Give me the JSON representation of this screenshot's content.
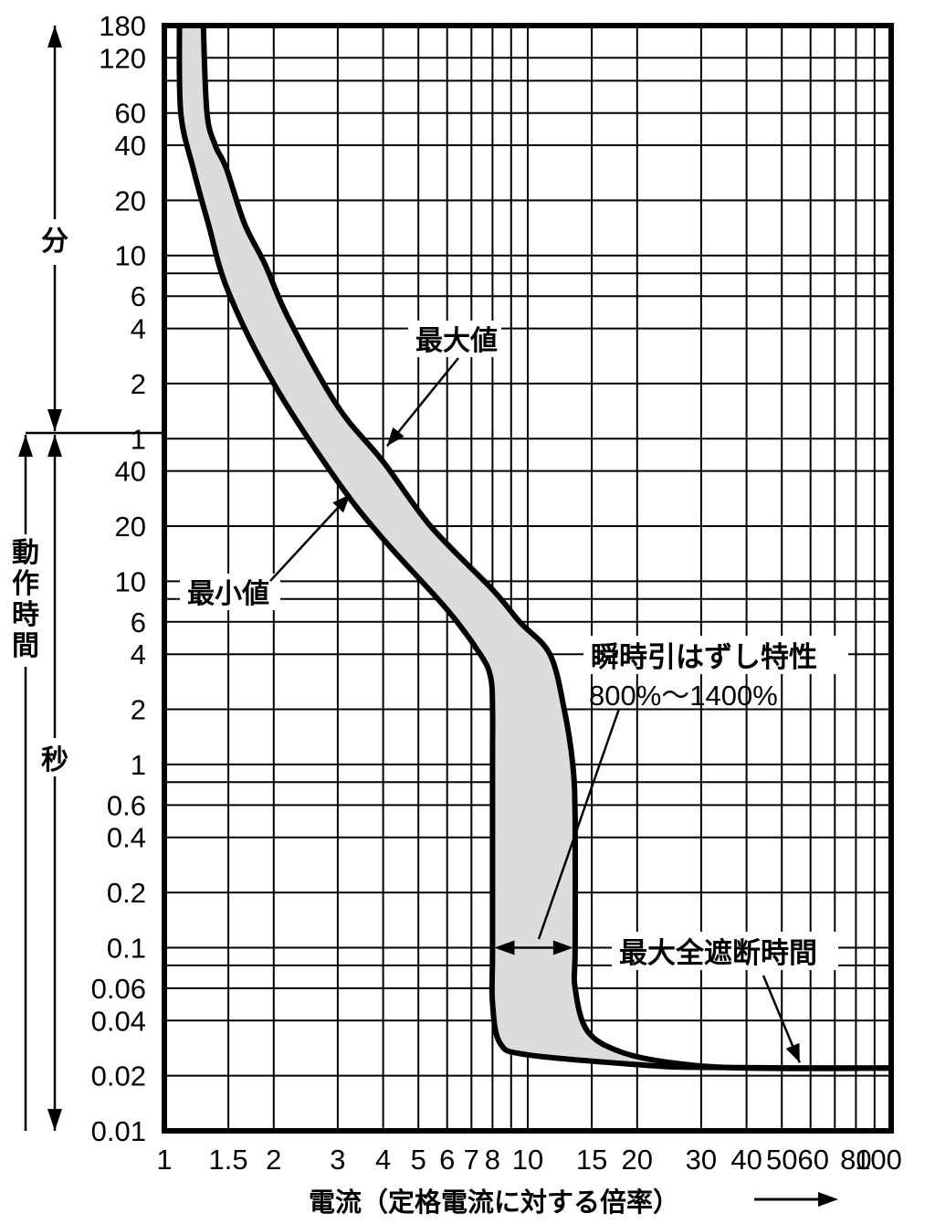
{
  "chart_data": {
    "type": "area",
    "title": "",
    "xlabel": "電流（定格電流に対する倍率）",
    "x_axis": {
      "scale": "log",
      "range": [
        1,
        100
      ],
      "tick_labels": [
        "1",
        "1.5",
        "2",
        "3",
        "4",
        "5",
        "6",
        "7",
        "8",
        "10",
        "15",
        "20",
        "30",
        "40",
        "50",
        "60",
        "80",
        "100"
      ]
    },
    "y_axis": {
      "scale": "log",
      "range_seconds": [
        0.01,
        10800
      ],
      "units": [
        "分",
        "秒"
      ],
      "label": "動作時間",
      "minute_tick_labels": [
        "180",
        "120",
        "60",
        "40",
        "20",
        "10",
        "6",
        "4",
        "2",
        "1"
      ],
      "second_tick_labels": [
        "40",
        "20",
        "10",
        "6",
        "4",
        "2",
        "1",
        "0.6",
        "0.4",
        "0.2",
        "0.1",
        "0.06",
        "0.04",
        "0.02",
        "0.01"
      ]
    },
    "grid": true,
    "series": [
      {
        "name": "最大値",
        "points": [
          [
            1.28,
            10800
          ],
          [
            1.31,
            3600
          ],
          [
            1.38,
            2400
          ],
          [
            1.48,
            1800
          ],
          [
            1.66,
            900
          ],
          [
            1.89,
            540
          ],
          [
            2.2,
            270
          ],
          [
            3.0,
            90
          ],
          [
            4.0,
            45
          ],
          [
            5.4,
            20
          ],
          [
            8.0,
            9
          ],
          [
            9.5,
            6
          ],
          [
            11.5,
            4
          ],
          [
            12.6,
            2
          ],
          [
            13.3,
            1
          ],
          [
            13.5,
            0.5
          ],
          [
            13.5,
            0.1
          ],
          [
            13.5,
            0.06
          ],
          [
            14.6,
            0.035
          ],
          [
            18,
            0.027
          ],
          [
            25,
            0.0235
          ],
          [
            40,
            0.022
          ],
          [
            100,
            0.022
          ]
        ]
      },
      {
        "name": "最小値",
        "points": [
          [
            1.1,
            10800
          ],
          [
            1.11,
            3600
          ],
          [
            1.2,
            1800
          ],
          [
            1.32,
            900
          ],
          [
            1.5,
            380
          ],
          [
            2.0,
            120
          ],
          [
            3.0,
            35
          ],
          [
            4.0,
            17
          ],
          [
            6.0,
            7
          ],
          [
            7.4,
            4
          ],
          [
            7.9,
            3
          ],
          [
            8.0,
            2
          ],
          [
            8.0,
            1
          ],
          [
            8.0,
            0.1
          ],
          [
            8.0,
            0.05
          ],
          [
            8.4,
            0.03
          ],
          [
            10.0,
            0.026
          ],
          [
            20,
            0.023
          ],
          [
            30,
            0.0222
          ],
          [
            100,
            0.022
          ]
        ]
      }
    ],
    "annotations": [
      {
        "text": "最大値",
        "points_to": "upper curve"
      },
      {
        "text": "最小値",
        "points_to": "lower curve"
      },
      {
        "text": "瞬時引はずし特性",
        "sub": "800%〜1400%",
        "range_x": [
          8,
          14
        ],
        "at_y": 0.1
      },
      {
        "text": "最大全遮断時間",
        "points_to": [
          56,
          0.022
        ]
      }
    ]
  },
  "labels": {
    "max": "最大値",
    "min": "最小値",
    "instant": "瞬時引はずし特性",
    "instant_range": "800%〜1400%",
    "max_break": "最大全遮断時間",
    "minutes": "分",
    "seconds": "秒",
    "time_label": "動作時間",
    "xlabel": "電流（定格電流に対する倍率）"
  }
}
